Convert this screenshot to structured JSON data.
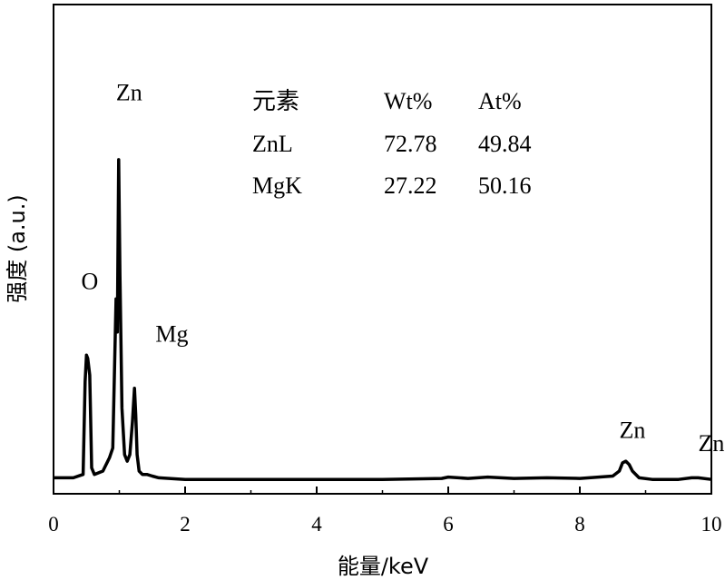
{
  "chart_data": {
    "type": "line",
    "xlabel": "能量/keV",
    "ylabel": "强度 (a.u.)",
    "xlim": [
      0,
      10
    ],
    "xticks": [
      "0",
      "2",
      "4",
      "6",
      "8",
      "10"
    ],
    "grid": false,
    "series": [
      {
        "x": [
          0.0,
          0.3,
          0.45,
          0.48,
          0.5,
          0.52,
          0.55,
          0.58,
          0.62,
          0.75,
          0.85,
          0.9,
          0.95,
          0.97,
          0.99,
          1.01,
          1.04,
          1.08,
          1.12,
          1.16,
          1.2,
          1.23,
          1.25,
          1.27,
          1.3,
          1.35,
          1.42,
          1.5,
          1.6,
          2.0,
          3.0,
          4.0,
          5.0,
          5.9,
          6.0,
          6.3,
          6.6,
          7.0,
          7.5,
          8.0,
          8.5,
          8.6,
          8.65,
          8.7,
          8.75,
          8.8,
          8.9,
          9.1,
          9.5,
          9.7,
          9.8,
          10.0
        ],
        "y": [
          0.01,
          0.01,
          0.02,
          0.3,
          0.38,
          0.37,
          0.32,
          0.04,
          0.02,
          0.03,
          0.07,
          0.1,
          0.55,
          0.45,
          0.97,
          0.62,
          0.22,
          0.08,
          0.06,
          0.08,
          0.18,
          0.28,
          0.2,
          0.08,
          0.03,
          0.02,
          0.02,
          0.015,
          0.01,
          0.005,
          0.005,
          0.005,
          0.005,
          0.008,
          0.012,
          0.008,
          0.012,
          0.008,
          0.01,
          0.008,
          0.015,
          0.03,
          0.055,
          0.06,
          0.05,
          0.03,
          0.01,
          0.005,
          0.005,
          0.01,
          0.01,
          0.005
        ]
      }
    ],
    "peak_labels": [
      {
        "text": "O",
        "x": 0.42,
        "y": 0.58
      },
      {
        "text": "Zn",
        "x": 0.95,
        "y": 1.15
      },
      {
        "text": "Mg",
        "x": 1.55,
        "y": 0.42
      },
      {
        "text": "Zn",
        "x": 8.6,
        "y": 0.13
      },
      {
        "text": "Zn",
        "x": 9.8,
        "y": 0.09
      }
    ],
    "table": {
      "headers": [
        "元素",
        "Wt%",
        "At%"
      ],
      "rows": [
        [
          "ZnL",
          "72.78",
          "49.84"
        ],
        [
          "MgK",
          "27.22",
          "50.16"
        ]
      ]
    }
  }
}
